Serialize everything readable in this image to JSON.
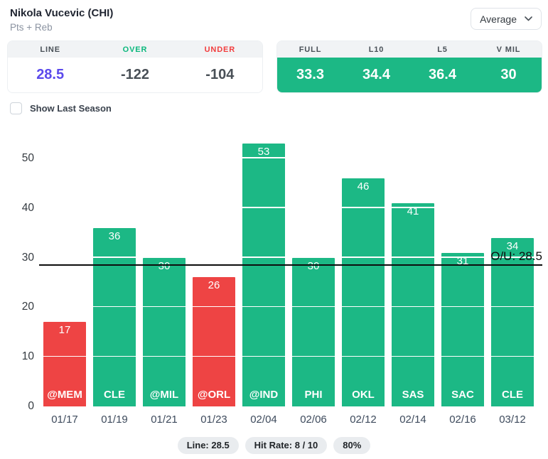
{
  "header": {
    "title": "Nikola Vucevic (CHI)",
    "subtitle": "Pts + Reb",
    "dropdown_value": "Average"
  },
  "odds_panel": {
    "columns": [
      {
        "label": "LINE",
        "value": "28.5"
      },
      {
        "label": "OVER",
        "value": "-122"
      },
      {
        "label": "UNDER",
        "value": "-104"
      }
    ]
  },
  "averages_panel": {
    "columns": [
      {
        "label": "FULL",
        "value": "33.3"
      },
      {
        "label": "L10",
        "value": "34.4"
      },
      {
        "label": "L5",
        "value": "36.4"
      },
      {
        "label": "V MIL",
        "value": "30"
      }
    ]
  },
  "toggle": {
    "label": "Show Last Season",
    "checked": false
  },
  "chart_data": {
    "type": "bar",
    "x": [
      "01/17",
      "01/19",
      "01/21",
      "01/23",
      "02/04",
      "02/06",
      "02/12",
      "02/14",
      "02/16",
      "03/12"
    ],
    "opponents": [
      "@MEM",
      "CLE",
      "@MIL",
      "@ORL",
      "@IND",
      "PHI",
      "OKL",
      "SAS",
      "SAC",
      "CLE"
    ],
    "values": [
      17,
      36,
      30,
      26,
      53,
      30,
      46,
      41,
      31,
      34
    ],
    "colors": [
      "red",
      "green",
      "green",
      "red",
      "green",
      "green",
      "green",
      "green",
      "green",
      "green"
    ],
    "title": "",
    "xlabel": "",
    "ylabel": "",
    "ylim": [
      0,
      54
    ],
    "yticks": [
      0,
      10,
      20,
      30,
      40,
      50
    ],
    "grid": "white-lines-over-bars",
    "reference_line": {
      "value": 28.5,
      "label": "O/U: 28.5",
      "color": "#0d0d0d"
    },
    "bar_green": "#1cb885",
    "bar_red": "#ee4444"
  },
  "footer": {
    "badges": [
      "Line: 28.5",
      "Hit Rate: 8 / 10",
      "80%"
    ]
  }
}
